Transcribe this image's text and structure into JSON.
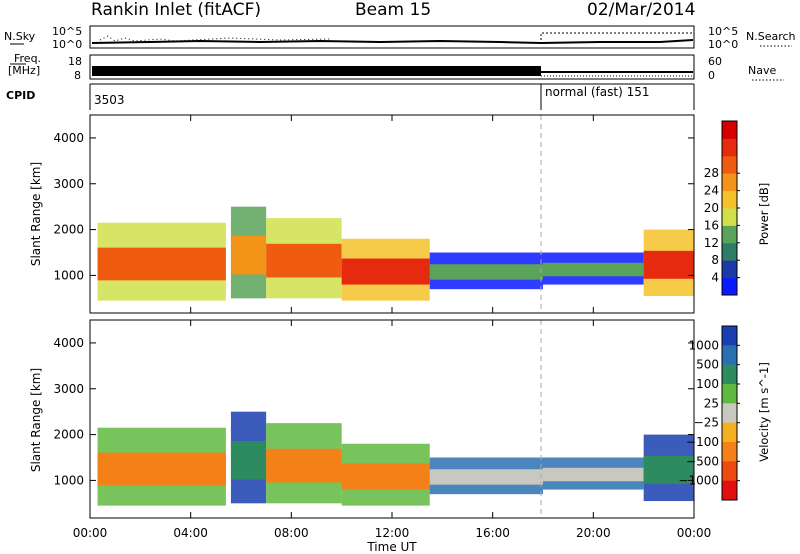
{
  "header": {
    "station": "Rankin Inlet (fitACF)",
    "beam": "Beam 15",
    "date": "02/Mar/2014"
  },
  "sky_panel": {
    "left_label": "N.Sky",
    "right_label": "N.Search",
    "left_ticks": [
      "10^5",
      "10^0"
    ],
    "right_ticks": [
      "10^5",
      "10^0"
    ]
  },
  "freq_panel": {
    "left_label_1": "Freq.",
    "left_label_2": "[MHz]",
    "right_label": "Nave",
    "left_ticks": [
      "18",
      "8"
    ],
    "right_ticks": [
      "60",
      "0"
    ]
  },
  "cpid": {
    "label": "CPID",
    "segments": [
      {
        "start_hour": 0,
        "end_hour": 18,
        "label": "3503"
      },
      {
        "start_hour": 18,
        "end_hour": 24,
        "label": "normal (fast) 151"
      }
    ]
  },
  "chart_data": [
    {
      "type": "heatmap",
      "title": "",
      "quantity": "Power",
      "xlabel": "",
      "ylabel": "Slant Range [km]",
      "xlim": [
        0,
        24
      ],
      "ylim": [
        180,
        4500
      ],
      "y_ticks": [
        1000,
        2000,
        3000,
        4000
      ],
      "colorbar": {
        "label": "Power [dB]",
        "ticks": [
          "4",
          "8",
          "12",
          "16",
          "20",
          "24",
          "28"
        ],
        "colors": [
          "#0a1aff",
          "#1c3aa6",
          "#2e7b66",
          "#5aa35a",
          "#cfe04a",
          "#f5c22a",
          "#f29418",
          "#ef5c10",
          "#e62a10",
          "#d40000"
        ]
      },
      "echo_regions": [
        {
          "t0": 0.3,
          "t1": 5.4,
          "r0": 450,
          "r1": 2150,
          "level": 7
        },
        {
          "t0": 5.6,
          "t1": 7.0,
          "r0": 500,
          "r1": 2500,
          "level": 6
        },
        {
          "t0": 7.0,
          "t1": 10.0,
          "r0": 500,
          "r1": 2250,
          "level": 7
        },
        {
          "t0": 10.0,
          "t1": 13.5,
          "r0": 450,
          "r1": 1800,
          "level": 8
        },
        {
          "t0": 13.5,
          "t1": 18.0,
          "r0": 700,
          "r1": 1500,
          "level": 3
        },
        {
          "t0": 18.0,
          "t1": 22.0,
          "r0": 800,
          "r1": 1500,
          "level": 3
        },
        {
          "t0": 22.0,
          "t1": 24.0,
          "r0": 550,
          "r1": 2000,
          "level": 8
        }
      ]
    },
    {
      "type": "heatmap",
      "title": "",
      "quantity": "Velocity",
      "xlabel": "Time UT",
      "ylabel": "Slant Range [km]",
      "xlim": [
        0,
        24
      ],
      "ylim": [
        180,
        4500
      ],
      "x_ticks": [
        "00:00",
        "04:00",
        "08:00",
        "12:00",
        "16:00",
        "20:00",
        "00:00"
      ],
      "y_ticks": [
        1000,
        2000,
        3000,
        4000
      ],
      "colorbar": {
        "label": "Velocity [m s^-1]",
        "ticks": [
          "1000",
          "500",
          "100",
          "25",
          "−25",
          "−100",
          "−500",
          "−1000"
        ],
        "colors": [
          "#1a40b0",
          "#2a70b0",
          "#2e8b60",
          "#60b840",
          "#c8c8c0",
          "#f4b020",
          "#f48018",
          "#ee4a14",
          "#e01010"
        ]
      },
      "echo_regions": [
        {
          "t0": 0.3,
          "t1": 5.4,
          "r0": 450,
          "r1": 2150,
          "level": 6
        },
        {
          "t0": 5.6,
          "t1": 7.0,
          "r0": 500,
          "r1": 2500,
          "level": 2
        },
        {
          "t0": 7.0,
          "t1": 10.0,
          "r0": 500,
          "r1": 2250,
          "level": 6
        },
        {
          "t0": 10.0,
          "t1": 13.5,
          "r0": 450,
          "r1": 1800,
          "level": 6
        },
        {
          "t0": 13.5,
          "t1": 18.0,
          "r0": 700,
          "r1": 1500,
          "level": 4
        },
        {
          "t0": 18.0,
          "t1": 22.0,
          "r0": 800,
          "r1": 1500,
          "level": 4
        },
        {
          "t0": 22.0,
          "t1": 24.0,
          "r0": 550,
          "r1": 2000,
          "level": 2
        }
      ]
    }
  ]
}
